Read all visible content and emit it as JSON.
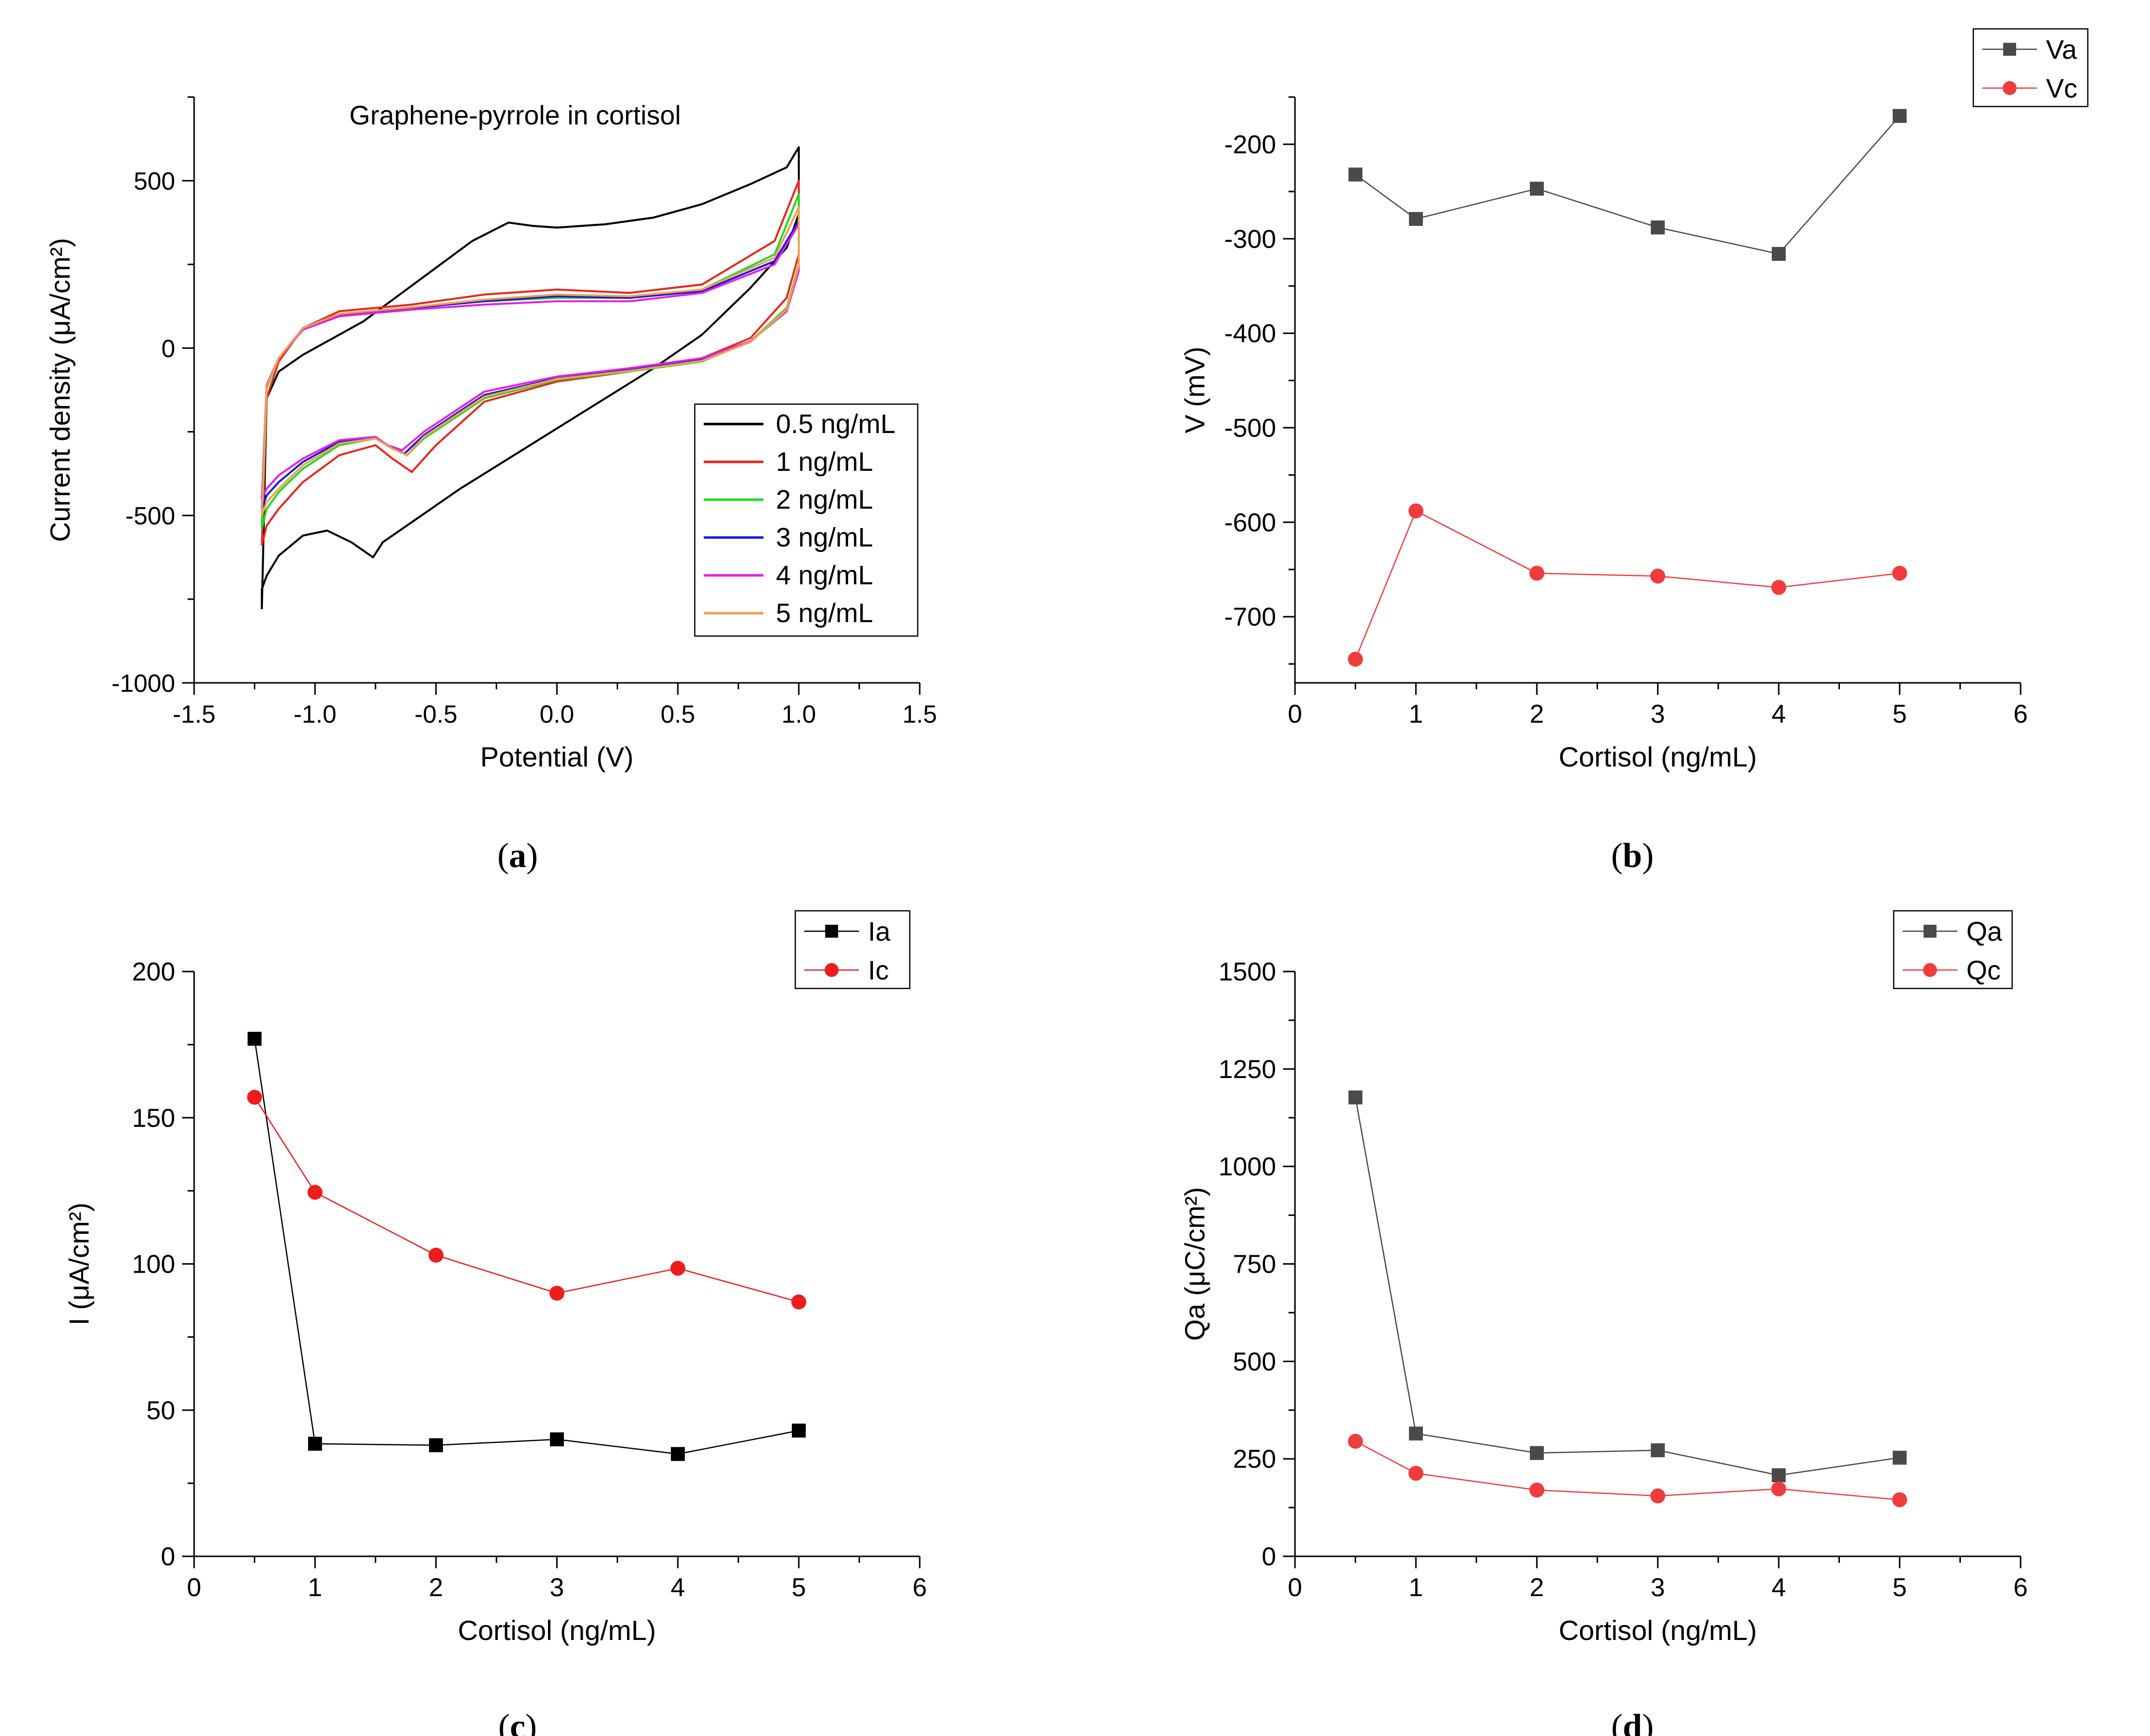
{
  "figure": {
    "panel_labels": [
      "a",
      "b",
      "c",
      "d"
    ]
  },
  "chart_data": [
    {
      "panel": "a",
      "type": "line",
      "title": "Graphene-pyrrole in cortisol",
      "xlabel": "Potential (V)",
      "ylabel": "Current density (μA/cm²)",
      "xlim": [
        -1.5,
        1.5
      ],
      "ylim": [
        -1000,
        750
      ],
      "xticks": [
        -1.5,
        -1.0,
        -0.5,
        0.0,
        0.5,
        1.0,
        1.5
      ],
      "xtick_labels": [
        "-1.5",
        "-1.0",
        "-0.5",
        "0.0",
        "0.5",
        "1.0",
        "1.5"
      ],
      "yticks": [
        -1000,
        -500,
        0,
        500
      ],
      "ytick_labels": [
        "-1000",
        "-500",
        "0",
        "500"
      ],
      "legend_position": "lower-right",
      "series": [
        {
          "name": "0.5 ng/mL",
          "color": "#000000",
          "x": [
            -1.22,
            -1.22,
            -1.2,
            -1.15,
            -1.05,
            -0.95,
            -0.85,
            -0.76,
            -0.72,
            -0.6,
            -0.4,
            -0.2,
            0.0,
            0.2,
            0.4,
            0.6,
            0.8,
            0.95,
            1.0,
            1.0,
            0.95,
            0.8,
            0.6,
            0.4,
            0.2,
            0.0,
            -0.1,
            -0.2,
            -0.35,
            -0.5,
            -0.65,
            -0.8,
            -0.95,
            -1.05,
            -1.15,
            -1.2,
            -1.22
          ],
          "y": [
            -780,
            -720,
            -680,
            -620,
            -560,
            -545,
            -580,
            -625,
            -580,
            -520,
            -420,
            -330,
            -240,
            -150,
            -60,
            40,
            180,
            300,
            400,
            600,
            540,
            490,
            430,
            390,
            370,
            360,
            365,
            375,
            320,
            240,
            160,
            80,
            20,
            -20,
            -70,
            -150,
            -780
          ]
        },
        {
          "name": "1 ng/mL",
          "color": "#e8261c",
          "x": [
            -1.22,
            -1.2,
            -1.15,
            -1.05,
            -0.9,
            -0.75,
            -0.68,
            -0.6,
            -0.5,
            -0.3,
            0.0,
            0.3,
            0.6,
            0.8,
            0.95,
            1.0,
            1.0,
            0.9,
            0.6,
            0.3,
            0.0,
            -0.3,
            -0.6,
            -0.9,
            -1.05,
            -1.15,
            -1.2,
            -1.22
          ],
          "y": [
            -590,
            -530,
            -480,
            -400,
            -320,
            -290,
            -330,
            -370,
            -290,
            -160,
            -100,
            -70,
            -30,
            30,
            150,
            280,
            500,
            320,
            190,
            165,
            175,
            160,
            130,
            110,
            60,
            -40,
            -150,
            -590
          ]
        },
        {
          "name": "2 ng/mL",
          "color": "#22d81f",
          "x": [
            -1.22,
            -1.2,
            -1.15,
            -1.05,
            -0.9,
            -0.75,
            -0.68,
            -0.62,
            -0.55,
            -0.3,
            0.0,
            0.3,
            0.6,
            0.8,
            0.95,
            1.0,
            1.0,
            0.9,
            0.6,
            0.3,
            0.0,
            -0.3,
            -0.6,
            -0.9,
            -1.05,
            -1.15,
            -1.2,
            -1.22
          ],
          "y": [
            -540,
            -480,
            -430,
            -360,
            -290,
            -270,
            -300,
            -320,
            -270,
            -150,
            -95,
            -70,
            -40,
            20,
            120,
            250,
            460,
            280,
            175,
            150,
            150,
            140,
            120,
            100,
            60,
            -30,
            -120,
            -540
          ]
        },
        {
          "name": "3 ng/mL",
          "color": "#1a1ad6",
          "x": [
            -1.22,
            -1.2,
            -1.15,
            -1.05,
            -0.9,
            -0.75,
            -0.68,
            -0.63,
            -0.55,
            -0.3,
            0.0,
            0.3,
            0.6,
            0.8,
            0.95,
            1.0,
            1.0,
            0.9,
            0.6,
            0.3,
            0.0,
            -0.3,
            -0.6,
            -0.9,
            -1.05,
            -1.15,
            -1.2,
            -1.22
          ],
          "y": [
            -480,
            -440,
            -400,
            -340,
            -280,
            -270,
            -300,
            -315,
            -260,
            -140,
            -90,
            -65,
            -35,
            20,
            110,
            240,
            380,
            260,
            170,
            150,
            155,
            140,
            120,
            100,
            60,
            -30,
            -110,
            -480
          ]
        },
        {
          "name": "4 ng/mL",
          "color": "#e61ee6",
          "x": [
            -1.22,
            -1.2,
            -1.15,
            -1.05,
            -0.9,
            -0.75,
            -0.7,
            -0.64,
            -0.55,
            -0.3,
            0.0,
            0.3,
            0.6,
            0.8,
            0.95,
            1.0,
            1.0,
            0.9,
            0.6,
            0.3,
            0.0,
            -0.3,
            -0.6,
            -0.9,
            -1.05,
            -1.15,
            -1.2,
            -1.22
          ],
          "y": [
            -450,
            -420,
            -380,
            -330,
            -275,
            -265,
            -290,
            -305,
            -250,
            -130,
            -85,
            -60,
            -30,
            20,
            110,
            230,
            370,
            250,
            165,
            140,
            140,
            130,
            115,
            95,
            55,
            -30,
            -110,
            -450
          ]
        },
        {
          "name": "5 ng/mL",
          "color": "#f0a050",
          "x": [
            -1.22,
            -1.2,
            -1.15,
            -1.05,
            -0.9,
            -0.75,
            -0.68,
            -0.62,
            -0.55,
            -0.3,
            0.0,
            0.3,
            0.6,
            0.8,
            0.95,
            1.0,
            1.0,
            0.9,
            0.6,
            0.3,
            0.0,
            -0.3,
            -0.6,
            -0.9,
            -1.05,
            -1.15,
            -1.2,
            -1.22
          ],
          "y": [
            -500,
            -460,
            -420,
            -350,
            -285,
            -270,
            -300,
            -320,
            -265,
            -145,
            -92,
            -68,
            -38,
            18,
            115,
            245,
            420,
            270,
            175,
            155,
            160,
            145,
            122,
            102,
            60,
            -30,
            -115,
            -500
          ]
        }
      ]
    },
    {
      "panel": "b",
      "type": "line",
      "title": "",
      "xlabel": "Cortisol (ng/mL)",
      "ylabel": "V (mV)",
      "xlim": [
        0,
        6
      ],
      "ylim": [
        -770,
        -150
      ],
      "xticks": [
        0,
        1,
        2,
        3,
        4,
        5,
        6
      ],
      "xtick_labels": [
        "0",
        "1",
        "2",
        "3",
        "4",
        "5",
        "6"
      ],
      "yticks": [
        -700,
        -600,
        -500,
        -400,
        -300,
        -200
      ],
      "ytick_labels": [
        "-700",
        "-600",
        "-500",
        "-400",
        "-300",
        "-200"
      ],
      "legend_position": "top-right-outside",
      "x": [
        0.5,
        1,
        2,
        3,
        4,
        5
      ],
      "series": [
        {
          "name": "Va",
          "color": "#4a4a4a",
          "marker": "square",
          "values": [
            -232,
            -279,
            -247,
            -288,
            -316,
            -170
          ]
        },
        {
          "name": "Vc",
          "color": "#f03c3c",
          "marker": "circle",
          "values": [
            -745,
            -588,
            -654,
            -657,
            -669,
            -654
          ]
        }
      ]
    },
    {
      "panel": "c",
      "type": "line",
      "title": "",
      "xlabel": "Cortisol (ng/mL)",
      "ylabel": "I (μA/cm²)",
      "xlim": [
        0,
        6
      ],
      "ylim": [
        0,
        200
      ],
      "xticks": [
        0,
        1,
        2,
        3,
        4,
        5,
        6
      ],
      "xtick_labels": [
        "0",
        "1",
        "2",
        "3",
        "4",
        "5",
        "6"
      ],
      "yticks": [
        0,
        50,
        100,
        150,
        200
      ],
      "ytick_labels": [
        "0",
        "50",
        "100",
        "150",
        "200"
      ],
      "legend_position": "top-right",
      "x": [
        0.5,
        1,
        2,
        3,
        4,
        5
      ],
      "series": [
        {
          "name": "Ia",
          "color": "#000000",
          "marker": "square",
          "values": [
            177,
            38.5,
            38,
            40,
            35,
            43
          ]
        },
        {
          "name": "Ic",
          "color": "#ee1c1c",
          "marker": "circle",
          "values": [
            157,
            124.5,
            103,
            90,
            98.5,
            87
          ]
        }
      ]
    },
    {
      "panel": "d",
      "type": "line",
      "title": "",
      "xlabel": "Cortisol (ng/mL)",
      "ylabel": "Qa (μC/cm²)",
      "xlim": [
        0,
        6
      ],
      "ylim": [
        0,
        1500
      ],
      "xticks": [
        0,
        1,
        2,
        3,
        4,
        5,
        6
      ],
      "xtick_labels": [
        "0",
        "1",
        "2",
        "3",
        "4",
        "5",
        "6"
      ],
      "yticks": [
        0,
        250,
        500,
        750,
        1000,
        1250,
        1500
      ],
      "ytick_labels": [
        "0",
        "250",
        "500",
        "750",
        "1000",
        "1250",
        "1500"
      ],
      "legend_position": "top-right",
      "x": [
        0.5,
        1,
        2,
        3,
        4,
        5
      ],
      "series": [
        {
          "name": "Qa",
          "color": "#4a4a4a",
          "marker": "square",
          "values": [
            1177,
            315,
            265,
            272,
            208,
            253
          ]
        },
        {
          "name": "Qc",
          "color": "#f03c3c",
          "marker": "circle",
          "values": [
            295,
            213,
            170,
            155,
            173,
            145
          ]
        }
      ]
    }
  ]
}
